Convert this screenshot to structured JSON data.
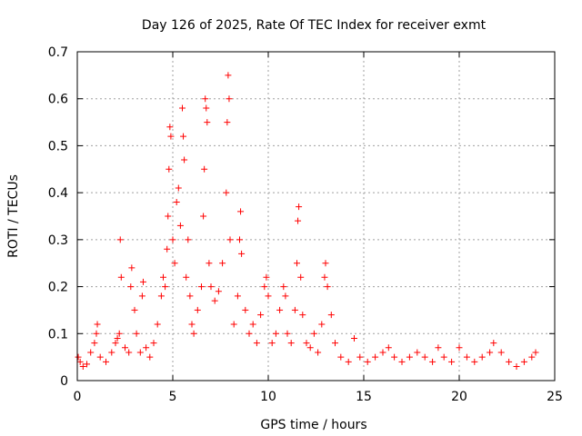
{
  "chart_data": {
    "type": "scatter",
    "title": "Day 126 of 2025, Rate Of TEC Index for receiver exmt",
    "xlabel": "GPS time / hours",
    "ylabel": "ROTI / TECUs",
    "xlim": [
      0,
      25
    ],
    "ylim": [
      0,
      0.7
    ],
    "x_ticks": [
      0,
      5,
      10,
      15,
      20,
      25
    ],
    "y_ticks": [
      0,
      0.1,
      0.2,
      0.3,
      0.4,
      0.5,
      0.6,
      0.7
    ],
    "x_tick_labels": [
      "0",
      "5",
      "10",
      "15",
      "20",
      "25"
    ],
    "y_tick_labels": [
      "0",
      "0.1",
      "0.2",
      "0.3",
      "0.4",
      "0.5",
      "0.6",
      "0.7"
    ],
    "grid": true,
    "marker": "+",
    "marker_color": "#ff0000",
    "series": [
      {
        "points": [
          [
            0.05,
            0.05
          ],
          [
            0.15,
            0.04
          ],
          [
            0.3,
            0.03
          ],
          [
            0.5,
            0.035
          ],
          [
            0.7,
            0.06
          ],
          [
            0.9,
            0.08
          ],
          [
            1.0,
            0.1
          ],
          [
            1.05,
            0.12
          ],
          [
            1.2,
            0.05
          ],
          [
            1.5,
            0.04
          ],
          [
            1.8,
            0.06
          ],
          [
            2.0,
            0.08
          ],
          [
            2.1,
            0.09
          ],
          [
            2.2,
            0.1
          ],
          [
            2.25,
            0.3
          ],
          [
            2.3,
            0.22
          ],
          [
            2.5,
            0.07
          ],
          [
            2.7,
            0.06
          ],
          [
            2.8,
            0.2
          ],
          [
            2.85,
            0.24
          ],
          [
            3.0,
            0.15
          ],
          [
            3.1,
            0.1
          ],
          [
            3.3,
            0.06
          ],
          [
            3.4,
            0.18
          ],
          [
            3.45,
            0.21
          ],
          [
            3.6,
            0.07
          ],
          [
            3.8,
            0.05
          ],
          [
            4.0,
            0.08
          ],
          [
            4.2,
            0.12
          ],
          [
            4.4,
            0.18
          ],
          [
            4.5,
            0.22
          ],
          [
            4.6,
            0.2
          ],
          [
            4.7,
            0.28
          ],
          [
            4.75,
            0.35
          ],
          [
            4.8,
            0.45
          ],
          [
            4.85,
            0.54
          ],
          [
            4.9,
            0.52
          ],
          [
            5.0,
            0.3
          ],
          [
            5.1,
            0.25
          ],
          [
            5.2,
            0.38
          ],
          [
            5.3,
            0.41
          ],
          [
            5.4,
            0.33
          ],
          [
            5.5,
            0.58
          ],
          [
            5.55,
            0.52
          ],
          [
            5.6,
            0.47
          ],
          [
            5.7,
            0.22
          ],
          [
            5.8,
            0.3
          ],
          [
            5.9,
            0.18
          ],
          [
            6.0,
            0.12
          ],
          [
            6.1,
            0.1
          ],
          [
            6.3,
            0.15
          ],
          [
            6.5,
            0.2
          ],
          [
            6.6,
            0.35
          ],
          [
            6.65,
            0.45
          ],
          [
            6.7,
            0.6
          ],
          [
            6.75,
            0.58
          ],
          [
            6.8,
            0.55
          ],
          [
            6.9,
            0.25
          ],
          [
            7.0,
            0.2
          ],
          [
            7.2,
            0.17
          ],
          [
            7.4,
            0.19
          ],
          [
            7.6,
            0.25
          ],
          [
            7.8,
            0.4
          ],
          [
            7.85,
            0.55
          ],
          [
            7.9,
            0.65
          ],
          [
            7.95,
            0.6
          ],
          [
            8.0,
            0.3
          ],
          [
            8.2,
            0.12
          ],
          [
            8.4,
            0.18
          ],
          [
            8.5,
            0.3
          ],
          [
            8.55,
            0.36
          ],
          [
            8.6,
            0.27
          ],
          [
            8.8,
            0.15
          ],
          [
            9.0,
            0.1
          ],
          [
            9.2,
            0.12
          ],
          [
            9.4,
            0.08
          ],
          [
            9.6,
            0.14
          ],
          [
            9.8,
            0.2
          ],
          [
            9.9,
            0.22
          ],
          [
            10.0,
            0.18
          ],
          [
            10.2,
            0.08
          ],
          [
            10.4,
            0.1
          ],
          [
            10.6,
            0.15
          ],
          [
            10.8,
            0.2
          ],
          [
            10.9,
            0.18
          ],
          [
            11.0,
            0.1
          ],
          [
            11.2,
            0.08
          ],
          [
            11.4,
            0.15
          ],
          [
            11.5,
            0.25
          ],
          [
            11.55,
            0.34
          ],
          [
            11.6,
            0.37
          ],
          [
            11.7,
            0.22
          ],
          [
            11.8,
            0.14
          ],
          [
            12.0,
            0.08
          ],
          [
            12.2,
            0.07
          ],
          [
            12.4,
            0.1
          ],
          [
            12.6,
            0.06
          ],
          [
            12.8,
            0.12
          ],
          [
            12.95,
            0.22
          ],
          [
            13.0,
            0.25
          ],
          [
            13.1,
            0.2
          ],
          [
            13.3,
            0.14
          ],
          [
            13.5,
            0.08
          ],
          [
            13.8,
            0.05
          ],
          [
            14.2,
            0.04
          ],
          [
            14.5,
            0.09
          ],
          [
            14.8,
            0.05
          ],
          [
            15.2,
            0.04
          ],
          [
            15.6,
            0.05
          ],
          [
            16.0,
            0.06
          ],
          [
            16.3,
            0.07
          ],
          [
            16.6,
            0.05
          ],
          [
            17.0,
            0.04
          ],
          [
            17.4,
            0.05
          ],
          [
            17.8,
            0.06
          ],
          [
            18.2,
            0.05
          ],
          [
            18.6,
            0.04
          ],
          [
            18.9,
            0.07
          ],
          [
            19.2,
            0.05
          ],
          [
            19.6,
            0.04
          ],
          [
            20.0,
            0.07
          ],
          [
            20.4,
            0.05
          ],
          [
            20.8,
            0.04
          ],
          [
            21.2,
            0.05
          ],
          [
            21.6,
            0.06
          ],
          [
            21.8,
            0.08
          ],
          [
            22.2,
            0.06
          ],
          [
            22.6,
            0.04
          ],
          [
            23.0,
            0.03
          ],
          [
            23.4,
            0.04
          ],
          [
            23.8,
            0.05
          ],
          [
            24.0,
            0.06
          ]
        ]
      }
    ]
  }
}
